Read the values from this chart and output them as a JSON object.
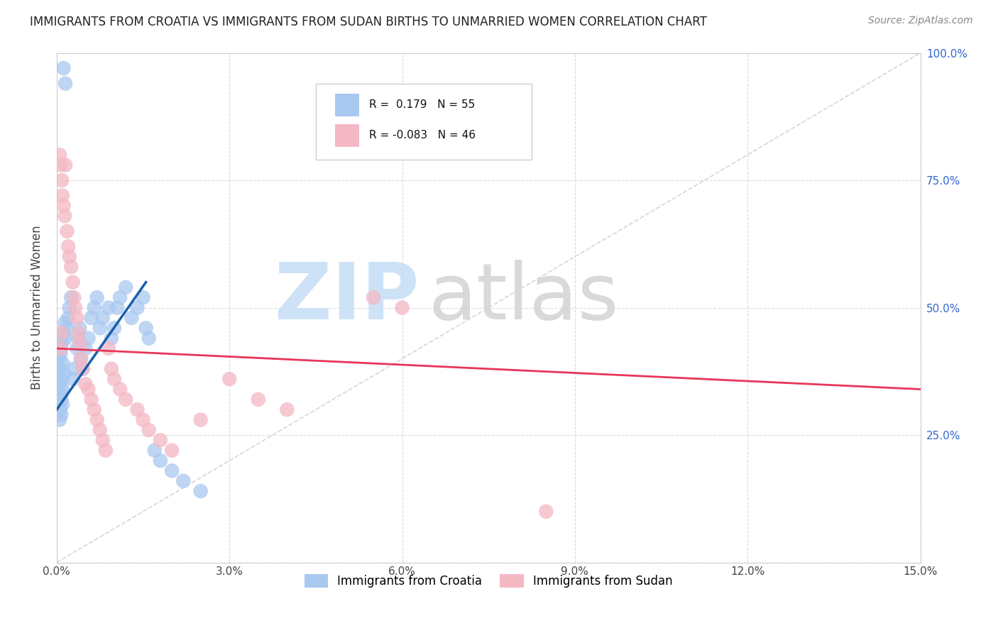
{
  "title": "IMMIGRANTS FROM CROATIA VS IMMIGRANTS FROM SUDAN BIRTHS TO UNMARRIED WOMEN CORRELATION CHART",
  "source": "Source: ZipAtlas.com",
  "ylabel": "Births to Unmarried Women",
  "xlim": [
    0.0,
    15.0
  ],
  "ylim": [
    0.0,
    100.0
  ],
  "xtick_vals": [
    0.0,
    3.0,
    6.0,
    9.0,
    12.0,
    15.0
  ],
  "xtick_labels": [
    "0.0%",
    "3.0%",
    "6.0%",
    "9.0%",
    "12.0%",
    "15.0%"
  ],
  "ytick_vals": [
    0.0,
    25.0,
    50.0,
    75.0,
    100.0
  ],
  "ytick_labels_right": [
    "",
    "25.0%",
    "50.0%",
    "75.0%",
    "100.0%"
  ],
  "legend_label1": "Immigrants from Croatia",
  "legend_label2": "Immigrants from Sudan",
  "r1": 0.179,
  "n1": 55,
  "r2": -0.083,
  "n2": 46,
  "color1": "#a8c8f0",
  "color2": "#f4b8c4",
  "line_color1": "#1a5faa",
  "line_color2": "#e8355a",
  "right_tick_color": "#3366cc",
  "background_color": "#ffffff",
  "grid_color": "#cccccc",
  "diag_color": "#bbbbbb",
  "croatia_x": [
    0.12,
    0.15,
    0.05,
    0.08,
    0.06,
    0.04,
    0.09,
    0.07,
    0.11,
    0.13,
    0.1,
    0.08,
    0.06,
    0.05,
    0.07,
    0.09,
    0.12,
    0.14,
    0.1,
    0.08,
    0.15,
    0.18,
    0.2,
    0.22,
    0.25,
    0.28,
    0.3,
    0.35,
    0.38,
    0.4,
    0.42,
    0.45,
    0.5,
    0.55,
    0.6,
    0.65,
    0.7,
    0.75,
    0.8,
    0.9,
    0.95,
    1.0,
    1.05,
    1.1,
    1.2,
    1.3,
    1.4,
    1.5,
    1.55,
    1.6,
    1.7,
    1.8,
    2.0,
    2.2,
    2.5
  ],
  "croatia_y": [
    97.0,
    94.0,
    35.0,
    33.0,
    38.0,
    40.0,
    36.0,
    42.0,
    39.0,
    37.0,
    34.0,
    32.0,
    30.0,
    28.0,
    41.0,
    43.0,
    45.0,
    47.0,
    31.0,
    29.0,
    44.0,
    46.0,
    48.0,
    50.0,
    52.0,
    36.0,
    38.0,
    42.0,
    44.0,
    46.0,
    40.0,
    38.0,
    42.0,
    44.0,
    48.0,
    50.0,
    52.0,
    46.0,
    48.0,
    50.0,
    44.0,
    46.0,
    50.0,
    52.0,
    54.0,
    48.0,
    50.0,
    52.0,
    46.0,
    44.0,
    22.0,
    20.0,
    18.0,
    16.0,
    14.0
  ],
  "sudan_x": [
    0.06,
    0.08,
    0.05,
    0.07,
    0.09,
    0.1,
    0.12,
    0.14,
    0.15,
    0.18,
    0.2,
    0.22,
    0.25,
    0.28,
    0.3,
    0.32,
    0.35,
    0.38,
    0.4,
    0.42,
    0.45,
    0.5,
    0.55,
    0.6,
    0.65,
    0.7,
    0.75,
    0.8,
    0.85,
    0.9,
    0.95,
    1.0,
    1.1,
    1.2,
    1.4,
    1.5,
    1.6,
    1.8,
    2.0,
    2.5,
    3.0,
    3.5,
    4.0,
    8.5,
    5.5,
    6.0
  ],
  "sudan_y": [
    42.0,
    45.0,
    80.0,
    78.0,
    75.0,
    72.0,
    70.0,
    68.0,
    78.0,
    65.0,
    62.0,
    60.0,
    58.0,
    55.0,
    52.0,
    50.0,
    48.0,
    45.0,
    43.0,
    40.0,
    38.0,
    35.0,
    34.0,
    32.0,
    30.0,
    28.0,
    26.0,
    24.0,
    22.0,
    42.0,
    38.0,
    36.0,
    34.0,
    32.0,
    30.0,
    28.0,
    26.0,
    24.0,
    22.0,
    28.0,
    36.0,
    32.0,
    30.0,
    10.0,
    52.0,
    50.0
  ],
  "cr_line_x0": 0.0,
  "cr_line_y0": 30.0,
  "cr_line_x1": 1.55,
  "cr_line_y1": 55.0,
  "su_line_x0": 0.0,
  "su_line_y0": 42.0,
  "su_line_x1": 15.0,
  "su_line_y1": 34.0
}
